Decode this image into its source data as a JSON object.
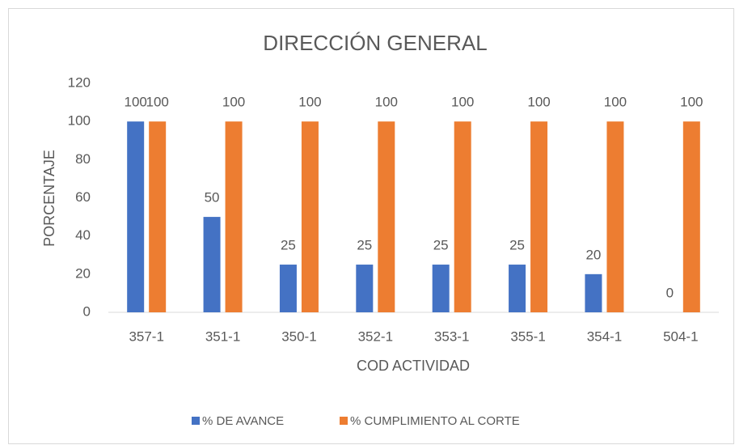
{
  "chart_data": {
    "type": "bar",
    "title": "DIRECCIÓN GENERAL",
    "x_label": "COD ACTIVIDAD",
    "y_label": "PORCENTAJE",
    "categories": [
      "357-1",
      "351-1",
      "350-1",
      "352-1",
      "353-1",
      "355-1",
      "354-1",
      "504-1"
    ],
    "series": [
      {
        "name": "% DE AVANCE",
        "color": "#4472c4",
        "values": [
          100,
          50,
          25,
          25,
          25,
          25,
          20,
          0
        ]
      },
      {
        "name": "% CUMPLIMIENTO AL CORTE",
        "color": "#ed7d31",
        "values": [
          100,
          100,
          100,
          100,
          100,
          100,
          100,
          100
        ]
      }
    ],
    "ylim": [
      0,
      120
    ],
    "yticks": [
      0,
      20,
      40,
      60,
      80,
      100,
      120
    ],
    "grid": false,
    "legend": "bottom"
  }
}
